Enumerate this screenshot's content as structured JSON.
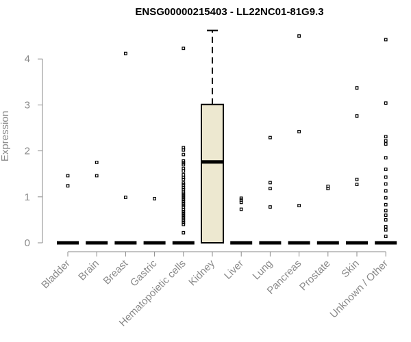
{
  "chart_data": {
    "type": "box",
    "title": "ENSG00000215403 - LL22NC01-81G9.3",
    "ylabel": "Expression",
    "xlabel": "",
    "ylim": [
      0,
      4.62
    ],
    "yticks": [
      0,
      1,
      2,
      3,
      4
    ],
    "grid": false,
    "box_fill": "#ede8d0",
    "categories": [
      "Bladder",
      "Brain",
      "Breast",
      "Gastric",
      "Hematopoietic cells",
      "Kidney",
      "Liver",
      "Lung",
      "Pancreas",
      "Prostate",
      "Skin",
      "Unknown / Other"
    ],
    "boxes": [
      {
        "q1": 0,
        "median": 0,
        "q3": 0,
        "whisker_low": 0,
        "whisker_high": 0,
        "outliers": [
          1.24,
          1.46
        ]
      },
      {
        "q1": 0,
        "median": 0,
        "q3": 0,
        "whisker_low": 0,
        "whisker_high": 0,
        "outliers": [
          1.46,
          1.75
        ]
      },
      {
        "q1": 0,
        "median": 0,
        "q3": 0,
        "whisker_low": 0,
        "whisker_high": 0,
        "outliers": [
          0.99,
          4.12
        ]
      },
      {
        "q1": 0,
        "median": 0,
        "q3": 0,
        "whisker_low": 0,
        "whisker_high": 0,
        "outliers": [
          0.96
        ]
      },
      {
        "q1": 0,
        "median": 0,
        "q3": 0,
        "whisker_low": 0,
        "whisker_high": 0,
        "outliers": [
          0.22,
          0.4,
          0.44,
          0.48,
          0.52,
          0.56,
          0.6,
          0.64,
          0.68,
          0.72,
          0.78,
          0.82,
          0.86,
          0.9,
          0.94,
          0.98,
          1.02,
          1.06,
          1.1,
          1.16,
          1.2,
          1.26,
          1.3,
          1.38,
          1.42,
          1.48,
          1.56,
          1.62,
          1.7,
          1.74,
          1.78,
          1.92,
          2.02,
          2.07,
          4.23
        ]
      },
      {
        "q1": 0,
        "median": 1.76,
        "q3": 3.01,
        "whisker_low": 0,
        "whisker_high": 4.62,
        "outliers": []
      },
      {
        "q1": 0,
        "median": 0,
        "q3": 0,
        "whisker_low": 0,
        "whisker_high": 0,
        "outliers": [
          0.73,
          0.88,
          0.93,
          0.97
        ]
      },
      {
        "q1": 0,
        "median": 0,
        "q3": 0,
        "whisker_low": 0,
        "whisker_high": 0,
        "outliers": [
          0.78,
          1.18,
          1.31,
          2.29
        ]
      },
      {
        "q1": 0,
        "median": 0,
        "q3": 0,
        "whisker_low": 0,
        "whisker_high": 0,
        "outliers": [
          0.81,
          2.42,
          4.5
        ]
      },
      {
        "q1": 0,
        "median": 0,
        "q3": 0,
        "whisker_low": 0,
        "whisker_high": 0,
        "outliers": [
          1.18,
          1.23
        ]
      },
      {
        "q1": 0,
        "median": 0,
        "q3": 0,
        "whisker_low": 0,
        "whisker_high": 0,
        "outliers": [
          1.27,
          1.38,
          2.76,
          3.37
        ]
      },
      {
        "q1": 0,
        "median": 0,
        "q3": 0,
        "whisker_low": 0,
        "whisker_high": 0,
        "outliers": [
          0.14,
          0.28,
          0.35,
          0.5,
          0.6,
          0.7,
          0.83,
          0.98,
          1.13,
          1.28,
          1.43,
          1.6,
          1.85,
          2.15,
          2.22,
          2.31,
          3.04,
          4.42
        ]
      }
    ]
  }
}
